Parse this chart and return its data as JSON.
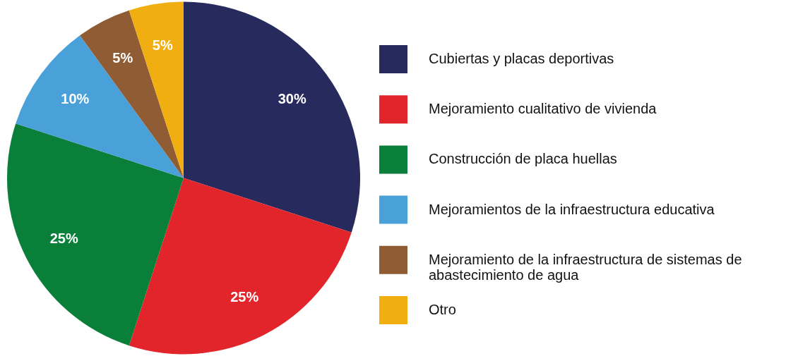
{
  "chart_data": {
    "type": "pie",
    "categories": [
      "Cubiertas y placas deportivas",
      "Mejoramiento cualitativo de vivienda",
      "Construcción de placa huellas",
      "Mejoramientos de la infraestructura educativa",
      "Mejoramiento de la infraestructura de sistemas de abastecimiento de agua",
      "Otro"
    ],
    "values": [
      30,
      25,
      25,
      10,
      5,
      5
    ],
    "colors": [
      "#272a5c",
      "#e2242b",
      "#0a7f3a",
      "#4aa0d8",
      "#8f5c34",
      "#f0ae10"
    ],
    "value_labels": [
      "30%",
      "25%",
      "25%",
      "10%",
      "5%",
      "5%"
    ],
    "legend": "right"
  }
}
